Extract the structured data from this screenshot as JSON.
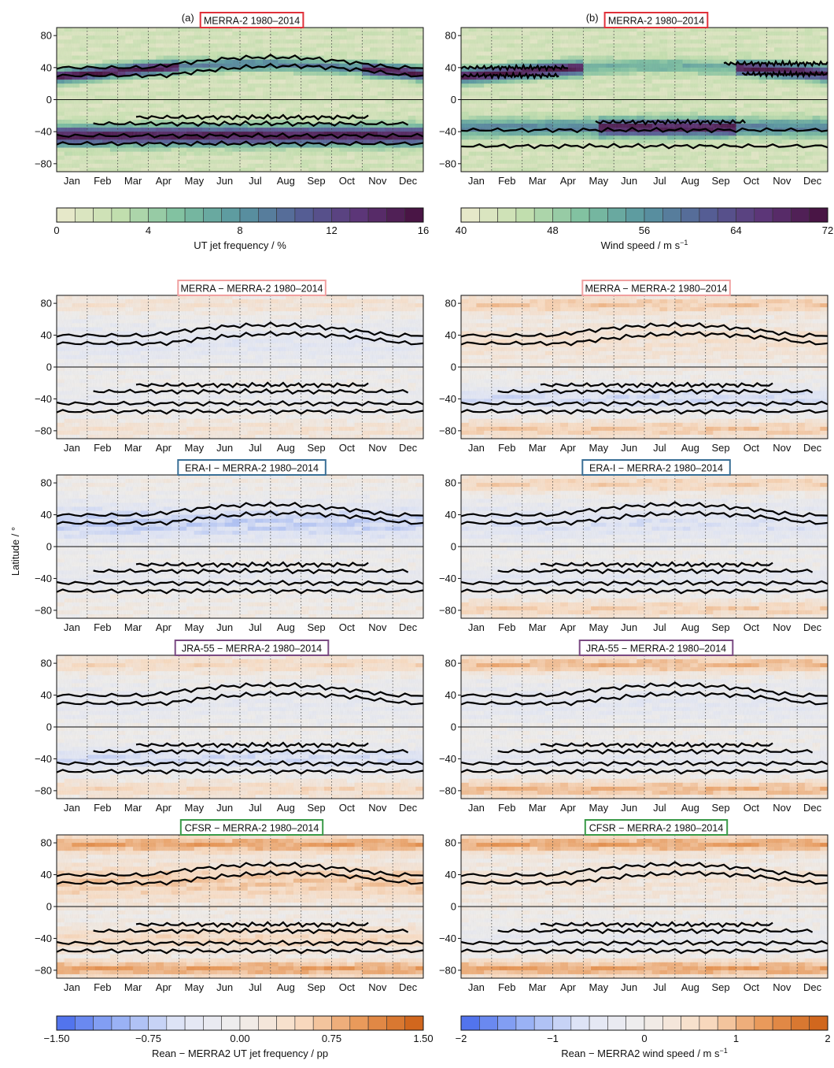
{
  "y_axis_label": "Latitude / °",
  "chart_data": [
    {
      "type": "heatmap",
      "panel_letter": "(a)",
      "title": "MERRA-2 1980–2014",
      "title_color": "#e0303a",
      "field": "UT jet frequency",
      "x_categories": [
        "Jan",
        "Feb",
        "Mar",
        "Apr",
        "May",
        "Jun",
        "Jul",
        "Aug",
        "Sep",
        "Oct",
        "Nov",
        "Dec"
      ],
      "y_ticks": [
        80,
        40,
        0,
        -40,
        -80
      ],
      "ylim": [
        -90,
        90
      ],
      "grid": true
    },
    {
      "type": "heatmap",
      "panel_letter": "(b)",
      "title": "MERRA-2 1980–2014",
      "title_color": "#e0303a",
      "field": "Wind speed",
      "x_categories": [
        "Jan",
        "Feb",
        "Mar",
        "Apr",
        "May",
        "Jun",
        "Jul",
        "Aug",
        "Sep",
        "Oct",
        "Nov",
        "Dec"
      ],
      "y_ticks": [
        80,
        40,
        0,
        -40,
        -80
      ],
      "ylim": [
        -90,
        90
      ],
      "grid": true
    },
    {
      "type": "heatmap",
      "title": "MERRA − MERRA-2 1980–2014",
      "title_color": "#f0a0a0",
      "field": "Rean − MERRA2 UT jet frequency",
      "x_categories": [
        "Jan",
        "Feb",
        "Mar",
        "Apr",
        "May",
        "Jun",
        "Jul",
        "Aug",
        "Sep",
        "Oct",
        "Nov",
        "Dec"
      ],
      "y_ticks": [
        80,
        40,
        0,
        -40,
        -80
      ],
      "ylim": [
        -90,
        90
      ],
      "grid": true
    },
    {
      "type": "heatmap",
      "title": "MERRA − MERRA-2 1980–2014",
      "title_color": "#f0a0a0",
      "field": "Rean − MERRA2 wind speed",
      "x_categories": [
        "Jan",
        "Feb",
        "Mar",
        "Apr",
        "May",
        "Jun",
        "Jul",
        "Aug",
        "Sep",
        "Oct",
        "Nov",
        "Dec"
      ],
      "y_ticks": [
        80,
        40,
        0,
        -40,
        -80
      ],
      "ylim": [
        -90,
        90
      ],
      "grid": true
    },
    {
      "type": "heatmap",
      "title": "ERA-I − MERRA-2 1980–2014",
      "title_color": "#3a6f96",
      "field": "Rean − MERRA2 UT jet frequency",
      "x_categories": [
        "Jan",
        "Feb",
        "Mar",
        "Apr",
        "May",
        "Jun",
        "Jul",
        "Aug",
        "Sep",
        "Oct",
        "Nov",
        "Dec"
      ],
      "y_ticks": [
        80,
        40,
        0,
        -40,
        -80
      ],
      "ylim": [
        -90,
        90
      ],
      "grid": true
    },
    {
      "type": "heatmap",
      "title": "ERA-I − MERRA-2 1980–2014",
      "title_color": "#3a6f96",
      "field": "Rean − MERRA2 wind speed",
      "x_categories": [
        "Jan",
        "Feb",
        "Mar",
        "Apr",
        "May",
        "Jun",
        "Jul",
        "Aug",
        "Sep",
        "Oct",
        "Nov",
        "Dec"
      ],
      "y_ticks": [
        80,
        40,
        0,
        -40,
        -80
      ],
      "ylim": [
        -90,
        90
      ],
      "grid": true
    },
    {
      "type": "heatmap",
      "title": "JRA-55 − MERRA-2 1980–2014",
      "title_color": "#7a4a82",
      "field": "Rean − MERRA2 UT jet frequency",
      "x_categories": [
        "Jan",
        "Feb",
        "Mar",
        "Apr",
        "May",
        "Jun",
        "Jul",
        "Aug",
        "Sep",
        "Oct",
        "Nov",
        "Dec"
      ],
      "y_ticks": [
        80,
        40,
        0,
        -40,
        -80
      ],
      "ylim": [
        -90,
        90
      ],
      "grid": true
    },
    {
      "type": "heatmap",
      "title": "JRA-55 − MERRA-2 1980–2014",
      "title_color": "#7a4a82",
      "field": "Rean − MERRA2 wind speed",
      "x_categories": [
        "Jan",
        "Feb",
        "Mar",
        "Apr",
        "May",
        "Jun",
        "Jul",
        "Aug",
        "Sep",
        "Oct",
        "Nov",
        "Dec"
      ],
      "y_ticks": [
        80,
        40,
        0,
        -40,
        -80
      ],
      "ylim": [
        -90,
        90
      ],
      "grid": true
    },
    {
      "type": "heatmap",
      "title": "CFSR − MERRA-2 1980–2014",
      "title_color": "#3a9a48",
      "field": "Rean − MERRA2 UT jet frequency",
      "x_categories": [
        "Jan",
        "Feb",
        "Mar",
        "Apr",
        "May",
        "Jun",
        "Jul",
        "Aug",
        "Sep",
        "Oct",
        "Nov",
        "Dec"
      ],
      "y_ticks": [
        80,
        40,
        0,
        -40,
        -80
      ],
      "ylim": [
        -90,
        90
      ],
      "grid": true
    },
    {
      "type": "heatmap",
      "title": "CFSR − MERRA-2 1980–2014",
      "title_color": "#3a9a48",
      "field": "Rean − MERRA2 wind speed",
      "x_categories": [
        "Jan",
        "Feb",
        "Mar",
        "Apr",
        "May",
        "Jun",
        "Jul",
        "Aug",
        "Sep",
        "Oct",
        "Nov",
        "Dec"
      ],
      "y_ticks": [
        80,
        40,
        0,
        -40,
        -80
      ],
      "ylim": [
        -90,
        90
      ],
      "grid": true
    }
  ],
  "colorbars": [
    {
      "label": "UT jet frequency / %",
      "ticks": [
        "0",
        "4",
        "8",
        "12",
        "16"
      ],
      "range": [
        0,
        16
      ],
      "palette": "sequential green-purple"
    },
    {
      "label": "Wind speed / m s",
      "label_sup": "−1",
      "ticks": [
        "40",
        "48",
        "56",
        "64",
        "72"
      ],
      "range": [
        40,
        72
      ],
      "palette": "sequential green-purple"
    },
    {
      "label": "Rean − MERRA2 UT jet frequency / pp",
      "ticks": [
        "−1.50",
        "−0.75",
        "0.00",
        "0.75",
        "1.50"
      ],
      "range": [
        -1.5,
        1.5
      ],
      "palette": "diverging blue-orange"
    },
    {
      "label": "Rean − MERRA2 wind speed / m s",
      "label_sup": "−1",
      "ticks": [
        "−2",
        "−1",
        "0",
        "1",
        "2"
      ],
      "range": [
        -2,
        2
      ],
      "palette": "diverging blue-orange"
    }
  ]
}
